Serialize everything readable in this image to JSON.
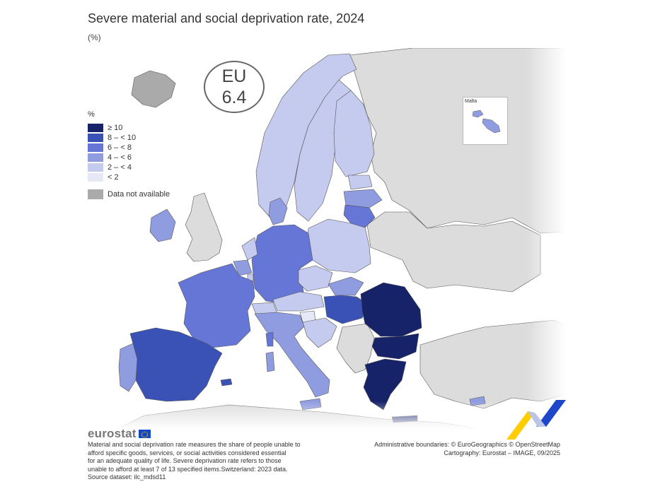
{
  "title": "Severe material and social deprivation rate, 2024",
  "subtitle": "(%)",
  "eu_badge": {
    "label": "EU",
    "value": "6.4"
  },
  "legend": {
    "unit": "%",
    "classes": [
      {
        "label": "≥ 10",
        "color": "#172369"
      },
      {
        "label": "8 – < 10",
        "color": "#3a52b5"
      },
      {
        "label": "6 – < 8",
        "color": "#6676d6"
      },
      {
        "label": "4 – < 6",
        "color": "#8f9ce0"
      },
      {
        "label": "2 – < 4",
        "color": "#c5cbee"
      },
      {
        "label": "< 2",
        "color": "#e6e8f8"
      }
    ],
    "not_available": {
      "label": "Data not available",
      "color": "#aaaaaa"
    }
  },
  "non_eu_color": "#dcdcdc",
  "inset": {
    "label": "Malta"
  },
  "map_data": {
    "countries": [
      {
        "code": "RO",
        "class": "≥ 10"
      },
      {
        "code": "BG",
        "class": "≥ 10"
      },
      {
        "code": "EL",
        "class": "≥ 10"
      },
      {
        "code": "ES",
        "class": "8 – < 10"
      },
      {
        "code": "HU",
        "class": "8 – < 10"
      },
      {
        "code": "FR",
        "class": "6 – < 8"
      },
      {
        "code": "DE",
        "class": "6 – < 8"
      },
      {
        "code": "LT",
        "class": "6 – < 8"
      },
      {
        "code": "IE",
        "class": "4 – < 6"
      },
      {
        "code": "PT",
        "class": "4 – < 6"
      },
      {
        "code": "IT",
        "class": "4 – < 6"
      },
      {
        "code": "LV",
        "class": "4 – < 6"
      },
      {
        "code": "DK",
        "class": "4 – < 6"
      },
      {
        "code": "MT",
        "class": "4 – < 6"
      },
      {
        "code": "SK",
        "class": "4 – < 6"
      },
      {
        "code": "CY",
        "class": "4 – < 6"
      },
      {
        "code": "NO",
        "class": "2 – < 4"
      },
      {
        "code": "SE",
        "class": "2 – < 4"
      },
      {
        "code": "FI",
        "class": "2 – < 4"
      },
      {
        "code": "EE",
        "class": "2 – < 4"
      },
      {
        "code": "PL",
        "class": "2 – < 4"
      },
      {
        "code": "CZ",
        "class": "2 – < 4"
      },
      {
        "code": "AT",
        "class": "2 – < 4"
      },
      {
        "code": "CH",
        "class": "2 – < 4"
      },
      {
        "code": "HR",
        "class": "2 – < 4"
      },
      {
        "code": "NL",
        "class": "2 – < 4"
      },
      {
        "code": "BE",
        "class": "4 – < 6"
      },
      {
        "code": "LU",
        "class": "2 – < 4"
      },
      {
        "code": "SI",
        "class": "< 2"
      },
      {
        "code": "IS",
        "class": "Data not available"
      }
    ]
  },
  "logo": {
    "text": "eurostat"
  },
  "footnote": [
    "Material and social deprivation rate measures the share of people unable to",
    "afford specific goods, services, or social activities considered essential",
    "for an adequate quality of life. Severe deprivation rate refers to those",
    "unable to afford at least 7 of 13 specified items.Switzerland: 2023 data.",
    "Source dataset: ilc_mdsd11"
  ],
  "credits": [
    "Administrative boundaries: © EuroGeographics © OpenStreetMap",
    "Cartography: Eurostat – IMAGE, 09/2025"
  ]
}
